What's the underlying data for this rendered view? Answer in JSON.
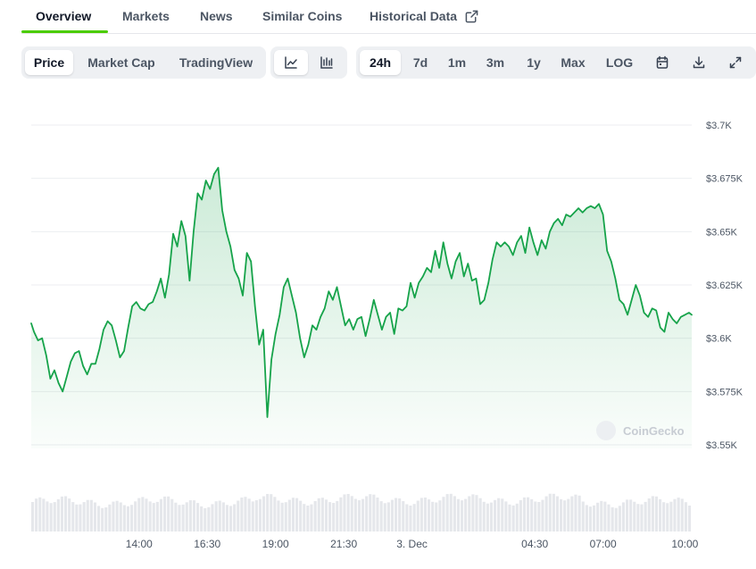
{
  "tabs": [
    {
      "label": "Overview",
      "active": true
    },
    {
      "label": "Markets"
    },
    {
      "label": "News"
    },
    {
      "label": "Similar Coins"
    },
    {
      "label": "Historical Data",
      "icon": "external-link-icon"
    }
  ],
  "toolbar": {
    "chart_type_tabs": [
      "Price",
      "Market Cap",
      "TradingView"
    ],
    "selected_chart_type": "Price",
    "view_icons": [
      "line-chart-icon",
      "candlestick-chart-icon"
    ],
    "selected_view": "line-chart-icon",
    "ranges": [
      "24h",
      "7d",
      "1m",
      "3m",
      "1y",
      "Max",
      "LOG"
    ],
    "selected_range": "24h",
    "tool_icons": [
      "calendar-icon",
      "download-icon",
      "fullscreen-icon"
    ]
  },
  "watermark": "CoinGecko",
  "colors": {
    "line": "#16a34a",
    "accent": "#4bcc00",
    "volume": "#e5e7eb"
  },
  "chart_data": {
    "type": "area",
    "y_tick_labels": [
      "$3.7K",
      "$3.675K",
      "$3.65K",
      "$3.625K",
      "$3.6K",
      "$3.575K",
      "$3.55K"
    ],
    "y_tick_values": [
      3700,
      3675,
      3650,
      3625,
      3600,
      3575,
      3550
    ],
    "ylim": [
      3550,
      3700
    ],
    "x_tick_labels": [
      "14:00",
      "16:30",
      "19:00",
      "21:30",
      "3. Dec",
      "04:30",
      "07:00",
      "10:00"
    ],
    "x_tick_hours": [
      14,
      16.5,
      19,
      21.5,
      24,
      28.5,
      31,
      34
    ],
    "xlim_hours": [
      10.05,
      34.25
    ],
    "grid": true,
    "price_points": [
      [
        10.05,
        3607
      ],
      [
        10.15,
        3603
      ],
      [
        10.3,
        3599
      ],
      [
        10.45,
        3600
      ],
      [
        10.6,
        3592
      ],
      [
        10.75,
        3581
      ],
      [
        10.9,
        3585
      ],
      [
        11.05,
        3579
      ],
      [
        11.2,
        3575
      ],
      [
        11.35,
        3582
      ],
      [
        11.5,
        3589
      ],
      [
        11.65,
        3593
      ],
      [
        11.8,
        3594
      ],
      [
        11.95,
        3587
      ],
      [
        12.1,
        3583
      ],
      [
        12.25,
        3588
      ],
      [
        12.4,
        3588
      ],
      [
        12.55,
        3595
      ],
      [
        12.7,
        3604
      ],
      [
        12.85,
        3608
      ],
      [
        13.0,
        3606
      ],
      [
        13.15,
        3599
      ],
      [
        13.3,
        3591
      ],
      [
        13.45,
        3594
      ],
      [
        13.6,
        3605
      ],
      [
        13.75,
        3615
      ],
      [
        13.9,
        3617
      ],
      [
        14.05,
        3614
      ],
      [
        14.2,
        3613
      ],
      [
        14.35,
        3616
      ],
      [
        14.5,
        3617
      ],
      [
        14.65,
        3622
      ],
      [
        14.8,
        3628
      ],
      [
        14.95,
        3619
      ],
      [
        15.1,
        3630
      ],
      [
        15.25,
        3649
      ],
      [
        15.4,
        3643
      ],
      [
        15.55,
        3655
      ],
      [
        15.7,
        3648
      ],
      [
        15.85,
        3627
      ],
      [
        16.0,
        3650
      ],
      [
        16.15,
        3668
      ],
      [
        16.3,
        3665
      ],
      [
        16.45,
        3674
      ],
      [
        16.6,
        3670
      ],
      [
        16.75,
        3677
      ],
      [
        16.9,
        3680
      ],
      [
        17.05,
        3660
      ],
      [
        17.2,
        3650
      ],
      [
        17.35,
        3643
      ],
      [
        17.5,
        3632
      ],
      [
        17.65,
        3628
      ],
      [
        17.8,
        3620
      ],
      [
        17.95,
        3640
      ],
      [
        18.1,
        3636
      ],
      [
        18.25,
        3615
      ],
      [
        18.4,
        3597
      ],
      [
        18.55,
        3604
      ],
      [
        18.7,
        3563
      ],
      [
        18.85,
        3590
      ],
      [
        19.0,
        3602
      ],
      [
        19.15,
        3611
      ],
      [
        19.3,
        3624
      ],
      [
        19.45,
        3628
      ],
      [
        19.6,
        3620
      ],
      [
        19.75,
        3612
      ],
      [
        19.9,
        3600
      ],
      [
        20.05,
        3591
      ],
      [
        20.2,
        3597
      ],
      [
        20.35,
        3606
      ],
      [
        20.5,
        3604
      ],
      [
        20.65,
        3610
      ],
      [
        20.8,
        3614
      ],
      [
        20.95,
        3622
      ],
      [
        21.1,
        3618
      ],
      [
        21.25,
        3624
      ],
      [
        21.4,
        3615
      ],
      [
        21.55,
        3606
      ],
      [
        21.7,
        3609
      ],
      [
        21.85,
        3604
      ],
      [
        22.0,
        3609
      ],
      [
        22.15,
        3610
      ],
      [
        22.3,
        3601
      ],
      [
        22.45,
        3609
      ],
      [
        22.6,
        3618
      ],
      [
        22.75,
        3611
      ],
      [
        22.9,
        3604
      ],
      [
        23.05,
        3610
      ],
      [
        23.2,
        3612
      ],
      [
        23.35,
        3602
      ],
      [
        23.5,
        3614
      ],
      [
        23.65,
        3613
      ],
      [
        23.8,
        3615
      ],
      [
        23.95,
        3626
      ],
      [
        24.1,
        3619
      ],
      [
        24.25,
        3626
      ],
      [
        24.4,
        3629
      ],
      [
        24.55,
        3633
      ],
      [
        24.7,
        3631
      ],
      [
        24.85,
        3641
      ],
      [
        25.0,
        3633
      ],
      [
        25.15,
        3645
      ],
      [
        25.3,
        3635
      ],
      [
        25.45,
        3628
      ],
      [
        25.6,
        3636
      ],
      [
        25.75,
        3640
      ],
      [
        25.9,
        3629
      ],
      [
        26.05,
        3635
      ],
      [
        26.2,
        3627
      ],
      [
        26.35,
        3628
      ],
      [
        26.5,
        3616
      ],
      [
        26.65,
        3618
      ],
      [
        26.8,
        3626
      ],
      [
        26.95,
        3637
      ],
      [
        27.1,
        3645
      ],
      [
        27.25,
        3643
      ],
      [
        27.4,
        3645
      ],
      [
        27.55,
        3643
      ],
      [
        27.7,
        3639
      ],
      [
        27.85,
        3645
      ],
      [
        28.0,
        3648
      ],
      [
        28.15,
        3640
      ],
      [
        28.3,
        3652
      ],
      [
        28.45,
        3645
      ],
      [
        28.6,
        3639
      ],
      [
        28.75,
        3646
      ],
      [
        28.9,
        3642
      ],
      [
        29.05,
        3650
      ],
      [
        29.2,
        3654
      ],
      [
        29.35,
        3656
      ],
      [
        29.5,
        3653
      ],
      [
        29.65,
        3658
      ],
      [
        29.8,
        3657
      ],
      [
        29.95,
        3659
      ],
      [
        30.1,
        3661
      ],
      [
        30.25,
        3659
      ],
      [
        30.4,
        3661
      ],
      [
        30.55,
        3662
      ],
      [
        30.7,
        3661
      ],
      [
        30.85,
        3663
      ],
      [
        31.0,
        3658
      ],
      [
        31.15,
        3641
      ],
      [
        31.3,
        3636
      ],
      [
        31.45,
        3628
      ],
      [
        31.6,
        3618
      ],
      [
        31.75,
        3616
      ],
      [
        31.9,
        3611
      ],
      [
        32.05,
        3618
      ],
      [
        32.2,
        3625
      ],
      [
        32.35,
        3620
      ],
      [
        32.5,
        3612
      ],
      [
        32.65,
        3610
      ],
      [
        32.8,
        3614
      ],
      [
        32.95,
        3613
      ],
      [
        33.1,
        3605
      ],
      [
        33.25,
        3603
      ],
      [
        33.4,
        3612
      ],
      [
        33.55,
        3609
      ],
      [
        33.7,
        3607
      ],
      [
        33.85,
        3610
      ],
      [
        34.0,
        3611
      ],
      [
        34.15,
        3612
      ],
      [
        34.25,
        3611
      ]
    ]
  }
}
